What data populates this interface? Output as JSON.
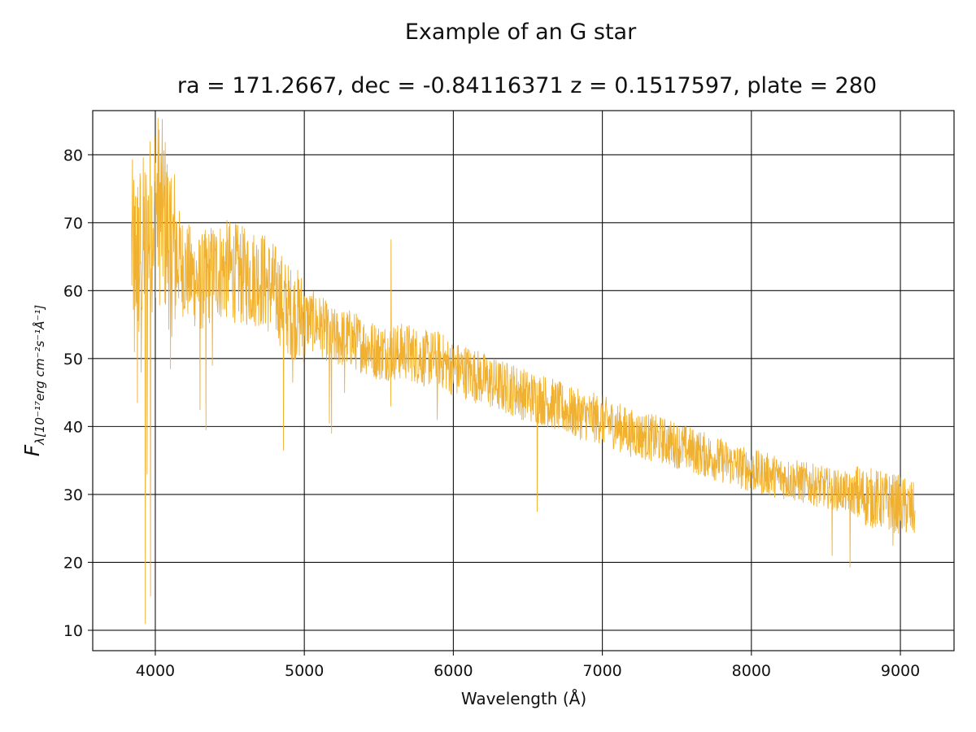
{
  "chart_data": {
    "type": "line",
    "title": "Example of an G star",
    "subtitle": "ra = 171.2667, dec = -0.84116371 z = 0.1517597, plate = 280",
    "xlabel": "Wavelength (Å)",
    "ylabel": {
      "symbol": "F",
      "subscript": "λ[10⁻¹⁷erg cm⁻²s⁻¹Å⁻¹]"
    },
    "xlim": [
      3580,
      9360
    ],
    "ylim": [
      7,
      86.5
    ],
    "xticks": [
      4000,
      5000,
      6000,
      7000,
      8000,
      9000
    ],
    "yticks": [
      10,
      20,
      30,
      40,
      50,
      60,
      70,
      80
    ],
    "grid": true,
    "color": "#f0b030",
    "series": [
      {
        "name": "",
        "trend": [
          [
            3840,
            66
          ],
          [
            3900,
            66
          ],
          [
            3950,
            68
          ],
          [
            4000,
            73
          ],
          [
            4050,
            71
          ],
          [
            4100,
            67
          ],
          [
            4200,
            63
          ],
          [
            4300,
            61
          ],
          [
            4400,
            63
          ],
          [
            4500,
            63
          ],
          [
            4600,
            62
          ],
          [
            4700,
            62
          ],
          [
            4800,
            60
          ],
          [
            4900,
            57
          ],
          [
            5000,
            56
          ],
          [
            5100,
            55
          ],
          [
            5200,
            53
          ],
          [
            5300,
            53
          ],
          [
            5400,
            52
          ],
          [
            5500,
            51
          ],
          [
            5600,
            51
          ],
          [
            5700,
            51
          ],
          [
            5800,
            50
          ],
          [
            5900,
            50
          ],
          [
            6000,
            48.5
          ],
          [
            6100,
            48
          ],
          [
            6200,
            47
          ],
          [
            6300,
            46
          ],
          [
            6400,
            45.5
          ],
          [
            6500,
            44.5
          ],
          [
            6600,
            44
          ],
          [
            6700,
            43
          ],
          [
            6800,
            42
          ],
          [
            6900,
            41.5
          ],
          [
            7000,
            41
          ],
          [
            7200,
            39
          ],
          [
            7400,
            38
          ],
          [
            7600,
            36.5
          ],
          [
            7800,
            35
          ],
          [
            8000,
            33.5
          ],
          [
            8200,
            32.5
          ],
          [
            8400,
            31.5
          ],
          [
            8600,
            30.5
          ],
          [
            8800,
            29.5
          ],
          [
            9000,
            28.5
          ],
          [
            9100,
            27.5
          ]
        ],
        "features": [
          [
            3860,
            51
          ],
          [
            3880,
            43.5
          ],
          [
            3890,
            54
          ],
          [
            3905,
            48
          ],
          [
            3933,
            11
          ],
          [
            3945,
            33
          ],
          [
            3968,
            15
          ],
          [
            3990,
            66
          ],
          [
            4102,
            48.5
          ],
          [
            4300,
            42.5
          ],
          [
            4340,
            39.5
          ],
          [
            4383,
            49
          ],
          [
            4860,
            36.5
          ],
          [
            4922,
            46.5
          ],
          [
            5004,
            50.5
          ],
          [
            5168,
            40.5
          ],
          [
            5183,
            39
          ],
          [
            5270,
            45
          ],
          [
            5580,
            43
          ],
          [
            5582,
            67.5
          ],
          [
            5892,
            41
          ],
          [
            6563,
            27.5
          ],
          [
            8542,
            21
          ],
          [
            8662,
            19.3
          ],
          [
            8950,
            22.5
          ]
        ]
      }
    ]
  }
}
